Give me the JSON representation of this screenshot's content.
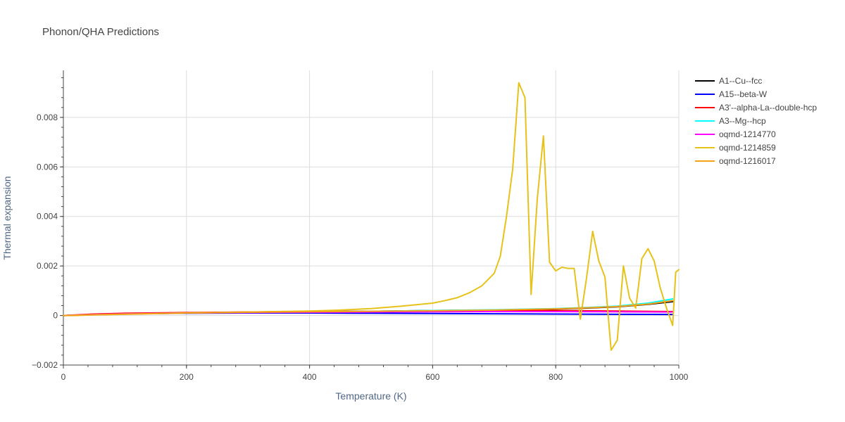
{
  "chart_data": {
    "type": "line",
    "title": "Phonon/QHA Predictions",
    "xlabel": "Temperature (K)",
    "ylabel": "Thermal expansion",
    "xlim": [
      0,
      1000
    ],
    "ylim": [
      -0.002,
      0.0099
    ],
    "x_ticks": [
      0,
      200,
      400,
      600,
      800,
      1000
    ],
    "x_tick_labels": [
      "0",
      "200",
      "400",
      "600",
      "800",
      "1000"
    ],
    "y_ticks": [
      -0.002,
      0,
      0.002,
      0.004,
      0.006,
      0.008
    ],
    "y_tick_labels": [
      "−0.002",
      "0",
      "0.002",
      "0.004",
      "0.006",
      "0.008"
    ],
    "grid": true,
    "legend_position": "top-right",
    "series": [
      {
        "name": "A1--Cu--fcc",
        "color": "#000000",
        "points": [
          [
            0,
            0
          ],
          [
            50,
            3e-05
          ],
          [
            100,
            6e-05
          ],
          [
            200,
            0.0001
          ],
          [
            300,
            0.00013
          ],
          [
            400,
            0.00015
          ],
          [
            500,
            0.00017
          ],
          [
            600,
            0.0002
          ],
          [
            700,
            0.00022
          ],
          [
            800,
            0.00026
          ],
          [
            850,
            0.0003
          ],
          [
            900,
            0.00035
          ],
          [
            950,
            0.00045
          ],
          [
            990,
            0.00056
          ]
        ]
      },
      {
        "name": "A15--beta-W",
        "color": "#0000ff",
        "points": [
          [
            0,
            0
          ],
          [
            50,
            4e-05
          ],
          [
            100,
            7e-05
          ],
          [
            200,
            9e-05
          ],
          [
            300,
            0.0001
          ],
          [
            400,
            0.0001
          ],
          [
            500,
            9e-05
          ],
          [
            600,
            8e-05
          ],
          [
            700,
            7e-05
          ],
          [
            800,
            6e-05
          ],
          [
            900,
            5e-05
          ],
          [
            990,
            4e-05
          ]
        ]
      },
      {
        "name": "A3'--alpha-La--double-hcp",
        "color": "#ff0000",
        "points": [
          [
            0,
            0
          ],
          [
            50,
            6e-05
          ],
          [
            100,
            9e-05
          ],
          [
            200,
            0.00012
          ],
          [
            300,
            0.00014
          ],
          [
            400,
            0.00016
          ],
          [
            500,
            0.00017
          ],
          [
            600,
            0.00018
          ],
          [
            700,
            0.00019
          ],
          [
            800,
            0.0002
          ],
          [
            900,
            0.00018
          ],
          [
            990,
            0.00016
          ]
        ]
      },
      {
        "name": "A3--Mg--hcp",
        "color": "#00ffff",
        "points": [
          [
            0,
            0
          ],
          [
            50,
            3e-05
          ],
          [
            100,
            6e-05
          ],
          [
            200,
            0.0001
          ],
          [
            300,
            0.00013
          ],
          [
            400,
            0.00015
          ],
          [
            500,
            0.00017
          ],
          [
            600,
            0.0002
          ],
          [
            700,
            0.00023
          ],
          [
            800,
            0.00028
          ],
          [
            850,
            0.00032
          ],
          [
            900,
            0.00038
          ],
          [
            950,
            0.0005
          ],
          [
            990,
            0.00067
          ]
        ]
      },
      {
        "name": "oqmd-1214770",
        "color": "#ff00ff",
        "points": [
          [
            0,
            0
          ],
          [
            50,
            4e-05
          ],
          [
            100,
            7e-05
          ],
          [
            200,
            0.0001
          ],
          [
            300,
            0.00012
          ],
          [
            400,
            0.00013
          ],
          [
            500,
            0.00014
          ],
          [
            600,
            0.00015
          ],
          [
            700,
            0.00016
          ],
          [
            800,
            0.00016
          ],
          [
            900,
            0.00015
          ],
          [
            990,
            0.00014
          ]
        ]
      },
      {
        "name": "oqmd-1214859",
        "color": "#e6c21a",
        "points": [
          [
            0,
            0
          ],
          [
            20,
            0
          ],
          [
            40,
            2e-05
          ],
          [
            100,
            5e-05
          ],
          [
            200,
            0.0001
          ],
          [
            300,
            0.00014
          ],
          [
            400,
            0.00018
          ],
          [
            450,
            0.00022
          ],
          [
            500,
            0.00028
          ],
          [
            550,
            0.00038
          ],
          [
            600,
            0.0005
          ],
          [
            620,
            0.0006
          ],
          [
            640,
            0.00072
          ],
          [
            660,
            0.00092
          ],
          [
            680,
            0.0012
          ],
          [
            700,
            0.0017
          ],
          [
            710,
            0.0024
          ],
          [
            720,
            0.004
          ],
          [
            730,
            0.0059
          ],
          [
            740,
            0.0094
          ],
          [
            750,
            0.0088
          ],
          [
            760,
            0.00085
          ],
          [
            770,
            0.0047
          ],
          [
            780,
            0.00725
          ],
          [
            790,
            0.00215
          ],
          [
            800,
            0.0018
          ],
          [
            810,
            0.00195
          ],
          [
            820,
            0.0019
          ],
          [
            830,
            0.0019
          ],
          [
            840,
            -0.00015
          ],
          [
            850,
            0.0015
          ],
          [
            860,
            0.0034
          ],
          [
            870,
            0.0022
          ],
          [
            880,
            0.00155
          ],
          [
            890,
            -0.0014
          ],
          [
            900,
            -0.001
          ],
          [
            910,
            0.002
          ],
          [
            920,
            0.0007
          ],
          [
            930,
            0.0003
          ],
          [
            940,
            0.0023
          ],
          [
            950,
            0.0027
          ],
          [
            960,
            0.0022
          ],
          [
            970,
            0.0011
          ],
          [
            980,
            0.0003
          ],
          [
            990,
            -0.0004
          ],
          [
            995,
            0.00175
          ],
          [
            1000,
            0.00185
          ]
        ]
      },
      {
        "name": "oqmd-1216017",
        "color": "#f5a21a",
        "points": [
          [
            0,
            0
          ],
          [
            50,
            3e-05
          ],
          [
            100,
            6e-05
          ],
          [
            200,
            0.0001
          ],
          [
            300,
            0.00013
          ],
          [
            400,
            0.00015
          ],
          [
            500,
            0.00017
          ],
          [
            600,
            0.00019
          ],
          [
            700,
            0.00022
          ],
          [
            800,
            0.00027
          ],
          [
            850,
            0.00031
          ],
          [
            900,
            0.00036
          ],
          [
            950,
            0.00046
          ],
          [
            990,
            0.0006
          ]
        ]
      }
    ]
  }
}
